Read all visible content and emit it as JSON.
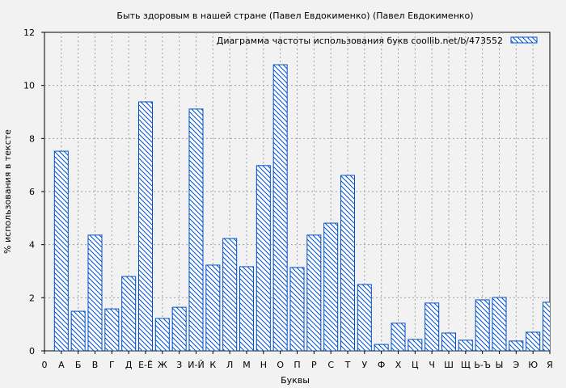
{
  "chart_data": {
    "type": "bar",
    "title": "Быть здоровым в нашей стране (Павел Евдокименко) (Павел Евдокименко)",
    "xlabel": "Буквы",
    "ylabel": "% использования в тексте",
    "legend": {
      "label": "Диаграмма частоты использования букв  coollib.net/b/473552",
      "placement": "top-right"
    },
    "x_origin_label": "0",
    "categories": [
      "А",
      "Б",
      "В",
      "Г",
      "Д",
      "Е-Ё",
      "Ж",
      "З",
      "И-Й",
      "К",
      "Л",
      "М",
      "Н",
      "О",
      "П",
      "Р",
      "С",
      "Т",
      "У",
      "Ф",
      "Х",
      "Ц",
      "Ч",
      "Ш",
      "Щ",
      "Ь-Ъ",
      "Ы",
      "Э",
      "Ю",
      "Я"
    ],
    "values": [
      7.52,
      1.49,
      4.36,
      1.58,
      2.8,
      9.38,
      1.22,
      1.64,
      9.11,
      3.23,
      4.23,
      3.17,
      6.98,
      10.78,
      3.14,
      4.36,
      4.81,
      6.61,
      2.5,
      0.24,
      1.04,
      0.43,
      1.8,
      0.67,
      0.4,
      1.92,
      2.01,
      0.37,
      0.7,
      1.83
    ],
    "ylim": [
      0,
      12
    ],
    "yticks": [
      0,
      2,
      4,
      6,
      8,
      10,
      12
    ],
    "grid": true,
    "colors": {
      "bar_stroke": "#0050c8",
      "background": "#f2f2f2",
      "grid": "#a0a0a0"
    }
  }
}
